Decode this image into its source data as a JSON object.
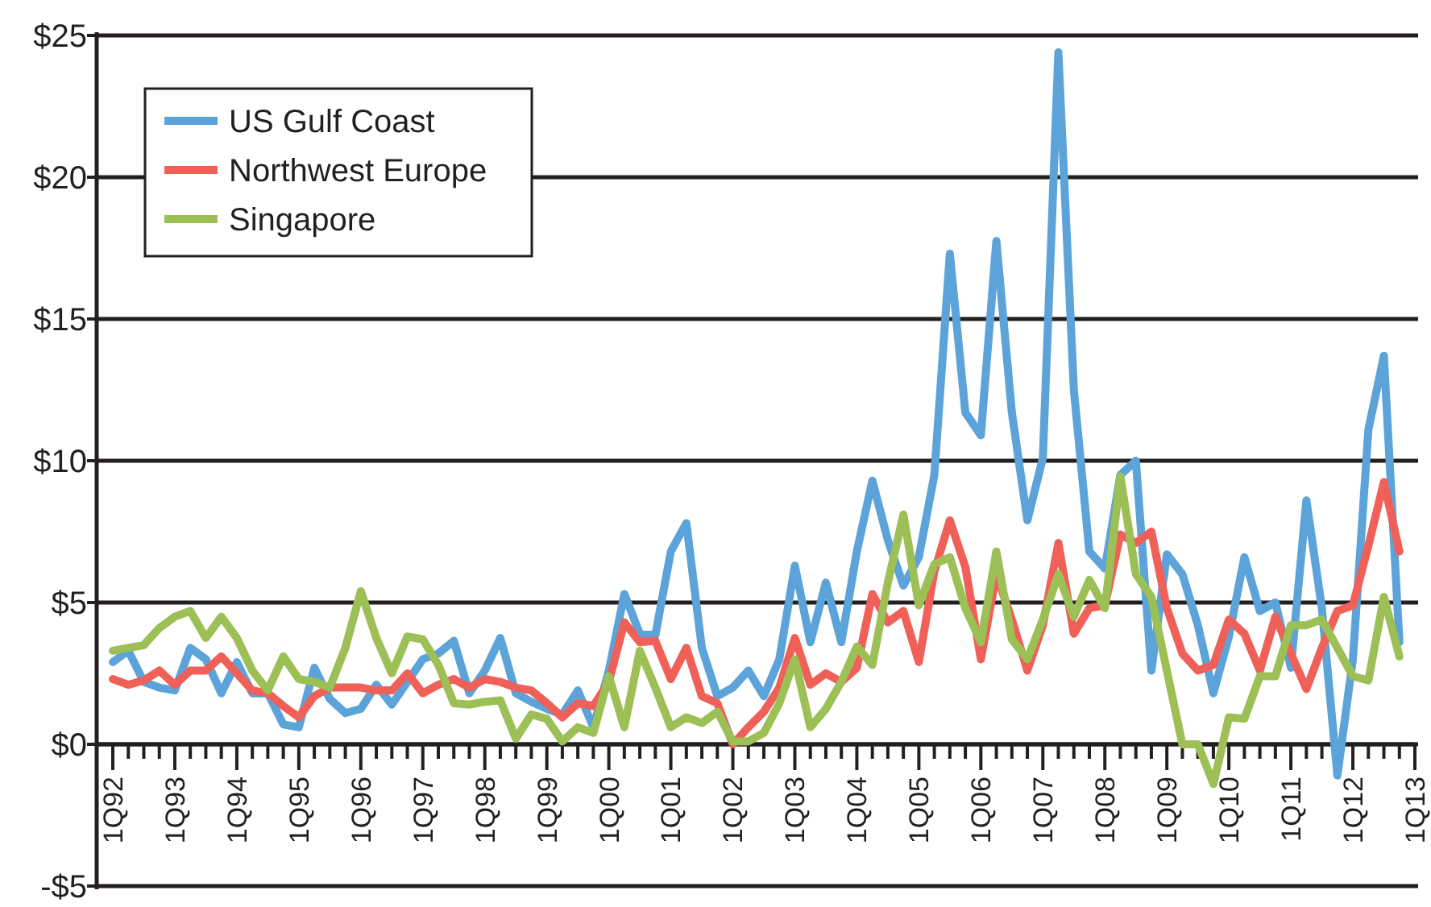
{
  "chart_data": {
    "type": "line",
    "legend": "top left",
    "grid": "y",
    "line_style": "solid",
    "marker": "none",
    "categories": [
      "1Q92",
      null,
      null,
      null,
      "1Q93",
      null,
      null,
      null,
      "1Q94",
      null,
      null,
      null,
      "1Q95",
      null,
      null,
      null,
      "1Q96",
      null,
      null,
      null,
      "1Q97",
      null,
      null,
      null,
      "1Q98",
      null,
      null,
      null,
      "1Q99",
      null,
      null,
      null,
      "1Q00",
      null,
      null,
      null,
      "1Q01",
      null,
      null,
      null,
      "1Q02",
      null,
      null,
      null,
      "1Q03",
      null,
      null,
      null,
      "1Q04",
      null,
      null,
      null,
      "1Q05",
      null,
      null,
      null,
      "1Q06",
      null,
      null,
      null,
      "1Q07",
      null,
      null,
      null,
      "1Q08",
      null,
      null,
      null,
      "1Q09",
      null,
      null,
      null,
      "1Q10",
      null,
      null,
      null,
      "1Q11",
      null,
      null,
      null,
      "1Q12",
      null,
      null,
      null,
      "1Q13"
    ],
    "series": [
      {
        "name": "US Gulf Coast",
        "color": "#5ba3d9",
        "values": [
          2.9,
          3.3,
          2.2,
          2.0,
          1.9,
          3.4,
          3.0,
          1.8,
          2.9,
          1.8,
          1.8,
          0.7,
          0.6,
          2.7,
          1.6,
          1.1,
          1.25,
          2.1,
          1.4,
          2.2,
          3.0,
          3.2,
          3.65,
          1.8,
          2.6,
          3.75,
          1.8,
          1.5,
          1.25,
          1.05,
          1.9,
          0.6,
          2.6,
          5.3,
          3.9,
          3.85,
          6.8,
          7.8,
          3.4,
          1.7,
          2.0,
          2.6,
          1.7,
          3.0,
          6.3,
          3.6,
          5.7,
          3.6,
          6.8,
          9.3,
          7.2,
          5.6,
          6.6,
          9.5,
          17.3,
          11.7,
          10.9,
          17.75,
          11.7,
          7.9,
          10.1,
          24.4,
          12.5,
          6.8,
          6.2,
          9.5,
          10.0,
          2.6,
          6.7,
          6.0,
          4.2,
          1.8,
          3.8,
          6.6,
          4.7,
          5.0,
          2.7,
          8.6,
          4.8,
          -1.1,
          3.0,
          11.1,
          13.7,
          3.6,
          null
        ]
      },
      {
        "name": "Northwest Europe",
        "color": "#ef6058",
        "values": [
          2.3,
          2.1,
          2.25,
          2.6,
          2.1,
          2.6,
          2.6,
          3.1,
          2.5,
          1.9,
          1.8,
          1.35,
          0.95,
          1.7,
          2.0,
          2.0,
          2.0,
          1.9,
          1.9,
          2.5,
          1.8,
          2.1,
          2.3,
          2.0,
          2.3,
          2.2,
          2.0,
          1.9,
          1.45,
          0.95,
          1.45,
          1.35,
          2.2,
          4.3,
          3.6,
          3.65,
          2.3,
          3.4,
          1.7,
          1.45,
          0.0,
          0.6,
          1.15,
          2.0,
          3.75,
          2.1,
          2.5,
          2.2,
          2.7,
          5.3,
          4.3,
          4.7,
          2.9,
          6.1,
          7.9,
          6.25,
          3.0,
          6.0,
          4.4,
          2.6,
          4.2,
          7.1,
          3.9,
          4.8,
          4.9,
          7.4,
          7.1,
          7.5,
          4.8,
          3.2,
          2.6,
          2.8,
          4.4,
          3.9,
          2.6,
          4.5,
          3.2,
          1.95,
          3.4,
          4.7,
          4.9,
          7.0,
          9.25,
          6.8,
          null
        ]
      },
      {
        "name": "Singapore",
        "color": "#9cbf56",
        "values": [
          3.3,
          3.4,
          3.5,
          4.1,
          4.5,
          4.7,
          3.75,
          4.5,
          3.75,
          2.6,
          1.9,
          3.1,
          2.3,
          2.2,
          2.0,
          3.4,
          5.4,
          3.75,
          2.5,
          3.8,
          3.7,
          2.8,
          1.45,
          1.4,
          1.5,
          1.55,
          0.2,
          1.05,
          0.9,
          0.1,
          0.6,
          0.4,
          2.4,
          0.6,
          3.3,
          2.0,
          0.6,
          0.95,
          0.75,
          1.15,
          0.1,
          0.1,
          0.4,
          1.45,
          3.0,
          0.6,
          1.25,
          2.2,
          3.45,
          2.8,
          5.7,
          8.1,
          4.9,
          6.35,
          6.6,
          4.8,
          3.6,
          6.8,
          3.7,
          3.0,
          4.4,
          6.0,
          4.5,
          5.8,
          4.8,
          9.45,
          6.0,
          5.2,
          2.6,
          0.0,
          0.0,
          -1.4,
          0.95,
          0.9,
          2.4,
          2.4,
          4.2,
          4.2,
          4.4,
          3.4,
          2.4,
          2.25,
          5.2,
          3.1,
          null
        ]
      }
    ],
    "ylim": [
      -5,
      25
    ],
    "yticks": [
      {
        "value": -5,
        "label": "-$5"
      },
      {
        "value": 0,
        "label": "$0"
      },
      {
        "value": 5,
        "label": "$5"
      },
      {
        "value": 10,
        "label": "$10"
      },
      {
        "value": 15,
        "label": "$15"
      },
      {
        "value": 20,
        "label": "$20"
      },
      {
        "value": 25,
        "label": "$25"
      }
    ]
  }
}
